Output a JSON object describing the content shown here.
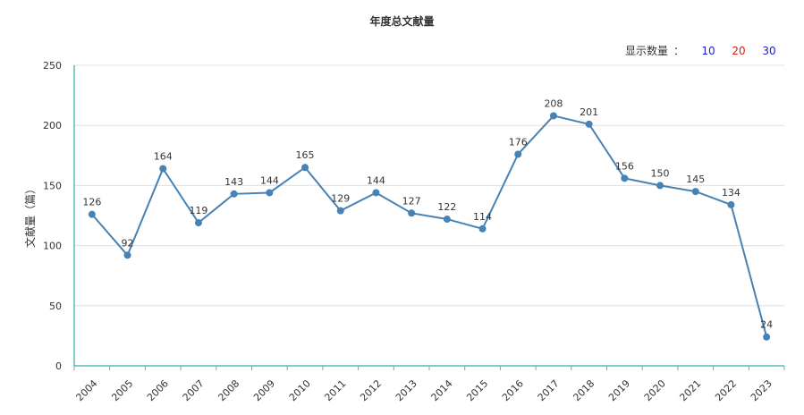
{
  "title": "年度总文献量",
  "display_count": {
    "label": "显示数量",
    "separator": "：",
    "options": [
      {
        "label": "10",
        "color": "#1a1ad4"
      },
      {
        "label": "20",
        "color": "#e01616"
      },
      {
        "label": "30",
        "color": "#1a1ad4"
      }
    ]
  },
  "chart_data": {
    "type": "line",
    "title": "年度总文献量",
    "xlabel": "",
    "ylabel": "文献量（篇）",
    "categories": [
      "2004",
      "2005",
      "2006",
      "2007",
      "2008",
      "2009",
      "2010",
      "2011",
      "2012",
      "2013",
      "2014",
      "2015",
      "2016",
      "2017",
      "2018",
      "2019",
      "2020",
      "2021",
      "2022",
      "2023"
    ],
    "values": [
      126,
      92,
      164,
      119,
      143,
      144,
      165,
      129,
      144,
      127,
      122,
      114,
      176,
      208,
      201,
      156,
      150,
      145,
      134,
      24
    ],
    "ylim": [
      0,
      250
    ],
    "yticks": [
      0,
      50,
      100,
      150,
      200,
      250
    ],
    "grid": true,
    "line_color": "#4682b4",
    "axis_color": "#009999"
  }
}
